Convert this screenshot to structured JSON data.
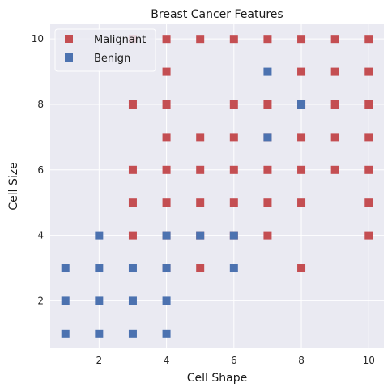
{
  "chart_data": {
    "type": "scatter",
    "title": "Breast Cancer Features",
    "xlabel": "Cell Shape",
    "ylabel": "Cell Size",
    "xlim": [
      0.55,
      10.45
    ],
    "ylim": [
      0.55,
      10.45
    ],
    "xticks": [
      2,
      4,
      6,
      8,
      10
    ],
    "yticks": [
      2,
      4,
      6,
      8,
      10
    ],
    "grid": true,
    "legend": "top-left",
    "series": [
      {
        "name": "Malignant",
        "color": "#c44e52",
        "marker": "square",
        "points": [
          [
            3,
            10
          ],
          [
            4,
            10
          ],
          [
            5,
            10
          ],
          [
            6,
            10
          ],
          [
            7,
            10
          ],
          [
            8,
            10
          ],
          [
            9,
            10
          ],
          [
            10,
            10
          ],
          [
            4,
            9
          ],
          [
            8,
            9
          ],
          [
            9,
            9
          ],
          [
            10,
            9
          ],
          [
            3,
            8
          ],
          [
            4,
            8
          ],
          [
            6,
            8
          ],
          [
            7,
            8
          ],
          [
            8,
            8
          ],
          [
            9,
            8
          ],
          [
            10,
            8
          ],
          [
            4,
            7
          ],
          [
            5,
            7
          ],
          [
            6,
            7
          ],
          [
            7,
            7
          ],
          [
            8,
            7
          ],
          [
            9,
            7
          ],
          [
            10,
            7
          ],
          [
            3,
            6
          ],
          [
            4,
            6
          ],
          [
            5,
            6
          ],
          [
            6,
            6
          ],
          [
            7,
            6
          ],
          [
            8,
            6
          ],
          [
            9,
            6
          ],
          [
            10,
            6
          ],
          [
            3,
            5
          ],
          [
            4,
            5
          ],
          [
            5,
            5
          ],
          [
            6,
            5
          ],
          [
            7,
            5
          ],
          [
            8,
            5
          ],
          [
            10,
            5
          ],
          [
            3,
            4
          ],
          [
            4,
            4
          ],
          [
            5,
            4
          ],
          [
            6,
            4
          ],
          [
            7,
            4
          ],
          [
            10,
            4
          ],
          [
            4,
            3
          ],
          [
            5,
            3
          ],
          [
            8,
            3
          ]
        ]
      },
      {
        "name": "Benign",
        "color": "#4c72b0",
        "marker": "square",
        "points": [
          [
            7,
            9
          ],
          [
            8,
            8
          ],
          [
            7,
            7
          ],
          [
            2,
            4
          ],
          [
            4,
            4
          ],
          [
            5,
            4
          ],
          [
            6,
            4
          ],
          [
            1,
            3
          ],
          [
            2,
            3
          ],
          [
            3,
            3
          ],
          [
            4,
            3
          ],
          [
            6,
            3
          ],
          [
            1,
            2
          ],
          [
            2,
            2
          ],
          [
            3,
            2
          ],
          [
            4,
            2
          ],
          [
            1,
            1
          ],
          [
            2,
            1
          ],
          [
            3,
            1
          ],
          [
            4,
            1
          ]
        ]
      }
    ]
  }
}
